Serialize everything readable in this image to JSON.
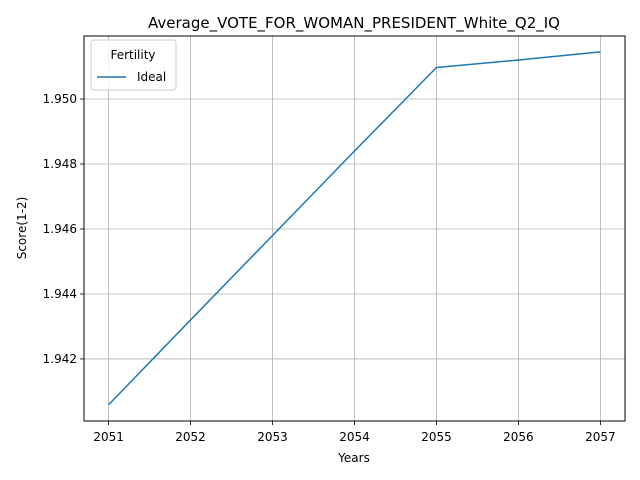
{
  "chart_data": {
    "type": "line",
    "title": "Average_VOTE_FOR_WOMAN_PRESIDENT_White_Q2_IQ",
    "xlabel": "Years",
    "ylabel": "Score(1-2)",
    "x": [
      2051,
      2052,
      2053,
      2054,
      2055,
      2056,
      2057
    ],
    "xticks": [
      "2051",
      "2052",
      "2053",
      "2054",
      "2055",
      "2056",
      "2057"
    ],
    "yticks": [
      "1.942",
      "1.944",
      "1.946",
      "1.948",
      "1.950"
    ],
    "yticks_values": [
      1.942,
      1.944,
      1.946,
      1.948,
      1.95
    ],
    "xlim": [
      2050.7,
      2057.3
    ],
    "ylim": [
      1.94009,
      1.95194
    ],
    "grid": true,
    "legend": {
      "title": "Fertility",
      "placement": "top-left"
    },
    "series": [
      {
        "name": "Ideal",
        "color": "#1f77b4",
        "values": [
          1.94059,
          1.9432,
          1.9458,
          1.9484,
          1.95097,
          1.9512,
          1.95145
        ]
      }
    ]
  }
}
